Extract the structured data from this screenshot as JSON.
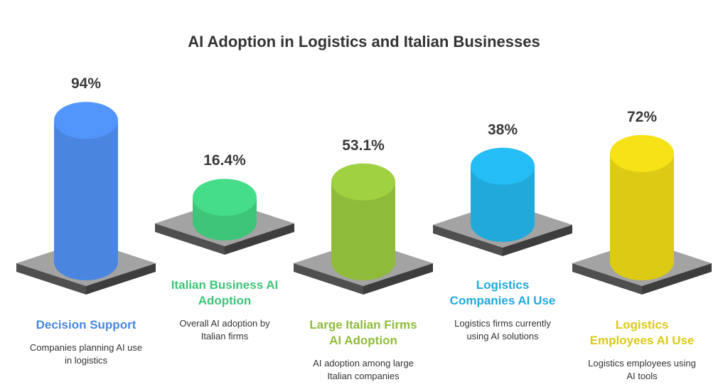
{
  "chart_data": {
    "type": "bar",
    "title": "AI Adoption in Logistics and Italian Businesses",
    "categories": [
      "Decision Support",
      "Italian Business AI Adoption",
      "Large Italian Firms AI Adoption",
      "Logistics Companies AI Use",
      "Logistics Employees AI Use"
    ],
    "values": [
      94,
      16.4,
      53.1,
      38,
      72
    ],
    "value_labels": [
      "94%",
      "16.4%",
      "53.1%",
      "38%",
      "72%"
    ],
    "descriptions": [
      "Companies planning AI use in logistics",
      "Overall AI adoption by Italian firms",
      "AI adoption among large Italian companies",
      "Logistics firms currently using AI solutions",
      "Logistics employees using AI tools"
    ],
    "colors": [
      "#4a86e0",
      "#3ec57a",
      "#8fbb3a",
      "#21a9dc",
      "#dcca14"
    ],
    "unit": "%",
    "xlabel": "",
    "ylabel": "",
    "grid": false,
    "legend": "none"
  }
}
